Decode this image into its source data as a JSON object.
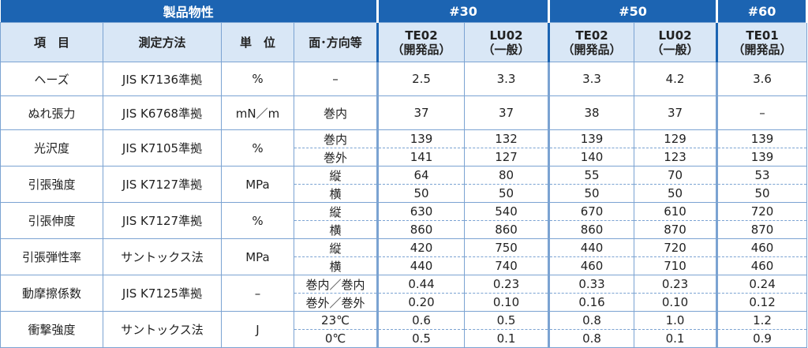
{
  "header": {
    "title": "製品物性",
    "groups": [
      "#30",
      "#50",
      "#60"
    ],
    "columns": [
      "項　目",
      "測定方法",
      "単　位",
      "面･方向等"
    ],
    "products": [
      {
        "name": "TE02",
        "note": "（開発品）"
      },
      {
        "name": "LU02",
        "note": "（一般）"
      },
      {
        "name": "TE02",
        "note": "（開発品）"
      },
      {
        "name": "LU02",
        "note": "（一般）"
      },
      {
        "name": "TE01",
        "note": "（開発品）"
      }
    ]
  },
  "table": {
    "rows": [
      {
        "item": "ヘーズ",
        "method": "JIS K7136準拠",
        "unit": "%",
        "sub": [
          {
            "cond": "–",
            "values": [
              "2.5",
              "3.3",
              "3.3",
              "4.2",
              "3.6"
            ]
          }
        ]
      },
      {
        "item": "ぬれ張力",
        "method": "JIS K6768準拠",
        "unit": "mN／m",
        "sub": [
          {
            "cond": "巻内",
            "values": [
              "37",
              "37",
              "38",
              "37",
              "–"
            ]
          }
        ]
      },
      {
        "item": "光沢度",
        "method": "JIS K7105準拠",
        "unit": "%",
        "sub": [
          {
            "cond": "巻内",
            "values": [
              "139",
              "132",
              "139",
              "129",
              "139"
            ]
          },
          {
            "cond": "巻外",
            "values": [
              "141",
              "127",
              "140",
              "123",
              "139"
            ]
          }
        ]
      },
      {
        "item": "引張強度",
        "method": "JIS K7127準拠",
        "unit": "MPa",
        "sub": [
          {
            "cond": "縦",
            "values": [
              "64",
              "80",
              "55",
              "70",
              "53"
            ]
          },
          {
            "cond": "横",
            "values": [
              "50",
              "50",
              "50",
              "50",
              "50"
            ]
          }
        ]
      },
      {
        "item": "引張伸度",
        "method": "JIS K7127準拠",
        "unit": "%",
        "sub": [
          {
            "cond": "縦",
            "values": [
              "630",
              "540",
              "670",
              "610",
              "720"
            ]
          },
          {
            "cond": "横",
            "values": [
              "860",
              "860",
              "860",
              "870",
              "870"
            ]
          }
        ]
      },
      {
        "item": "引張弾性率",
        "method": "サントックス法",
        "unit": "MPa",
        "sub": [
          {
            "cond": "縦",
            "values": [
              "420",
              "750",
              "440",
              "720",
              "460"
            ]
          },
          {
            "cond": "横",
            "values": [
              "440",
              "740",
              "460",
              "710",
              "460"
            ]
          }
        ]
      },
      {
        "item": "動摩擦係数",
        "method": "JIS K7125準拠",
        "unit": "–",
        "sub": [
          {
            "cond": "巻内／巻内",
            "values": [
              "0.44",
              "0.23",
              "0.33",
              "0.23",
              "0.24"
            ]
          },
          {
            "cond": "巻外／巻外",
            "values": [
              "0.20",
              "0.10",
              "0.16",
              "0.10",
              "0.12"
            ]
          }
        ]
      },
      {
        "item": "衝撃強度",
        "method": "サントックス法",
        "unit": "J",
        "sub": [
          {
            "cond": "23℃",
            "values": [
              "0.6",
              "0.5",
              "0.8",
              "1.0",
              "1.2"
            ]
          },
          {
            "cond": "0℃",
            "values": [
              "0.5",
              "0.1",
              "0.8",
              "0.1",
              "0.9"
            ]
          }
        ]
      }
    ]
  }
}
